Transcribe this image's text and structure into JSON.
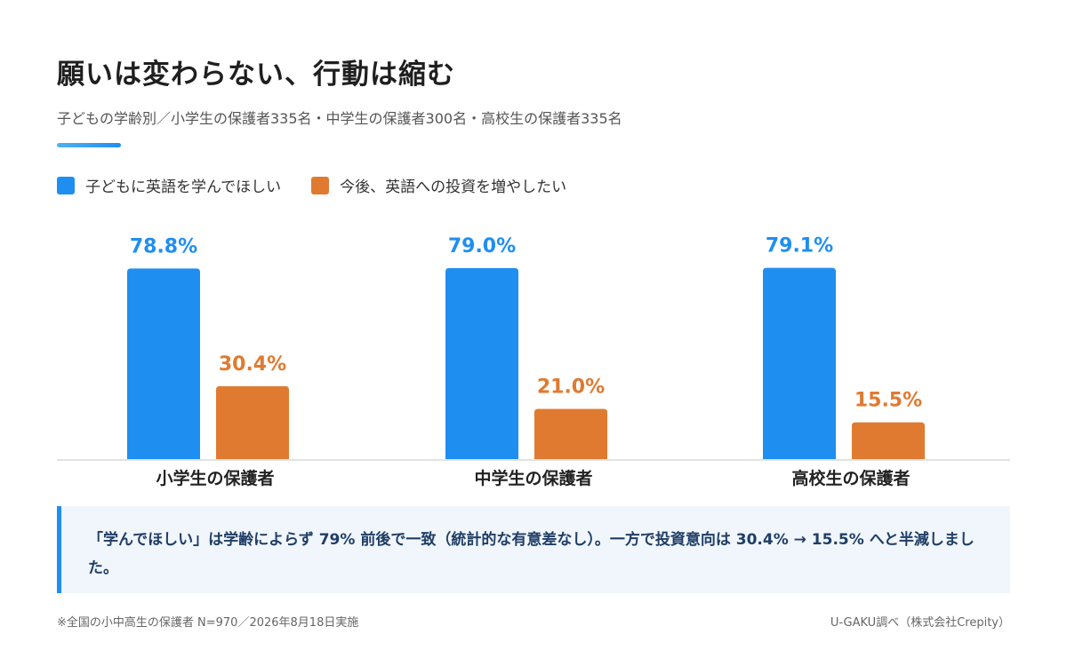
{
  "title": "願いは変わらない、行動は縮む",
  "subtitle": "子どもの学齢別／小学生の保護者335名・中学生の保護者300名・高校生の保護者335名",
  "callout": "「学んでほしい」は学齢によらず 79% 前後で一致（統計的な有意差なし）。一方で投資意向は 30.4% → 15.5% へと半減しました。",
  "footnote": "※全国の小中高生の保護者 N=970／2026年8月18日実施",
  "source": "U-GAKU調べ（株式会社Crepity）",
  "colors": {
    "series1": "#1f8ef1",
    "series2": "#e07a30",
    "accent": "#1f8ef1"
  },
  "chart_data": {
    "type": "bar",
    "categories": [
      "小学生の保護者",
      "中学生の保護者",
      "高校生の保護者"
    ],
    "series": [
      {
        "name": "子どもに英語を学んでほしい",
        "values": [
          78.8,
          79.0,
          79.1
        ],
        "labels": [
          "78.8%",
          "79.0%",
          "79.1%"
        ]
      },
      {
        "name": "今後、英語への投資を増やしたい",
        "values": [
          30.4,
          21.0,
          15.5
        ],
        "labels": [
          "30.4%",
          "21.0%",
          "15.5%"
        ]
      }
    ],
    "ylim": [
      0,
      100
    ],
    "legend": "top-left",
    "grid": false
  }
}
